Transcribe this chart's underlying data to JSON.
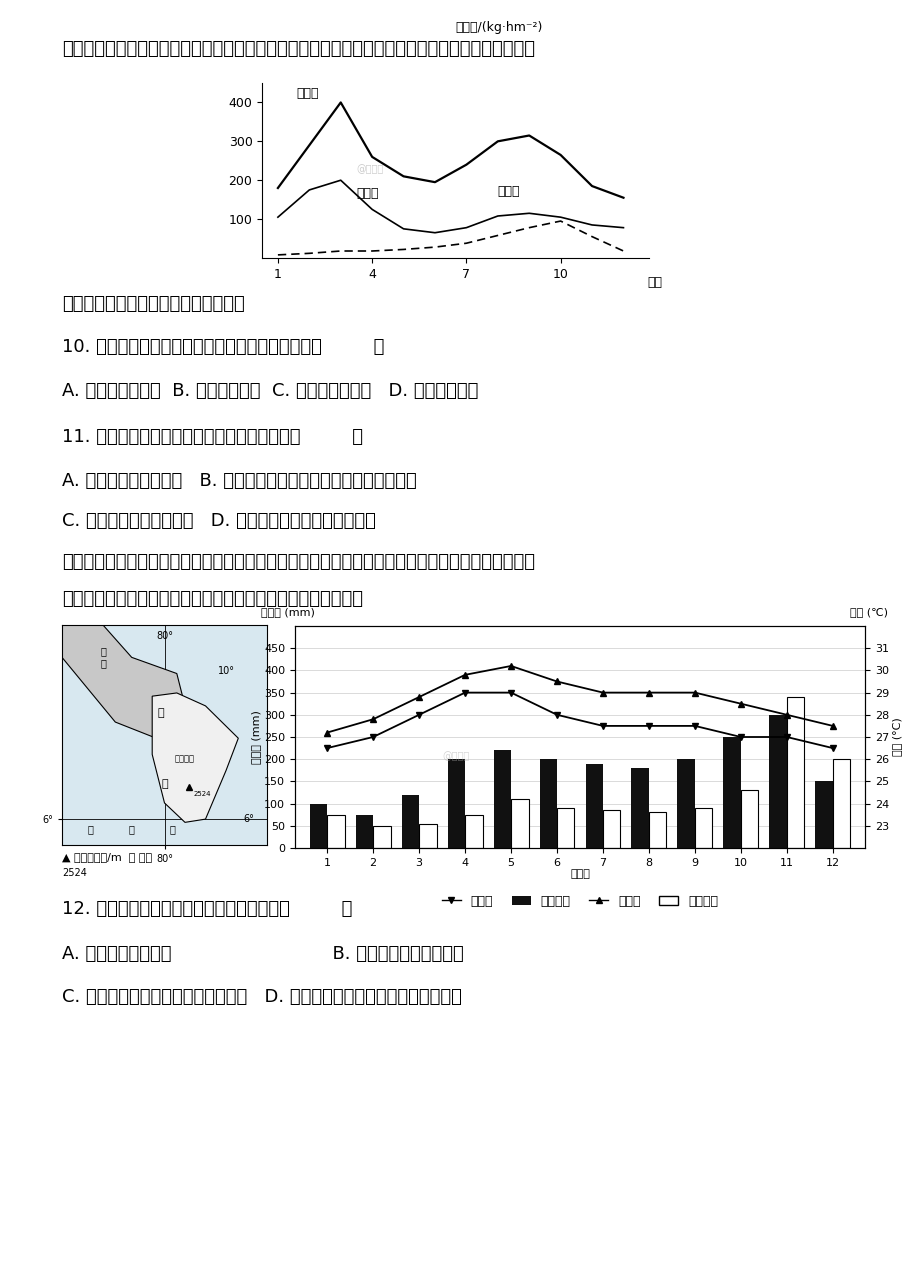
{
  "page_bg": "#ffffff",
  "para1": "森林凋落物也可称为枯落物（枯叶、枯枝、果实），下图为世界某地甲乙两种树种森林凋落物数量的",
  "para1_cont": "逐月变化示意图，据此完成下面小题。",
  "chart1_ylabel": "凋落量/(kg·hm⁻²)",
  "chart1_label_total": "总凋落",
  "chart1_label_jia": "甲树种",
  "chart1_label_yi": "乙树种",
  "chart1_xlabel": "月份",
  "total_y": [
    180,
    290,
    400,
    260,
    210,
    195,
    240,
    300,
    315,
    265,
    185,
    155
  ],
  "jia_y": [
    105,
    175,
    200,
    125,
    75,
    65,
    78,
    108,
    115,
    105,
    85,
    78
  ],
  "yi_y": [
    8,
    12,
    18,
    18,
    22,
    28,
    38,
    58,
    78,
    95,
    55,
    18
  ],
  "q10": "10. 图中乙树种分布地区在欧洲对应的气候类型为（         ）",
  "q10a": "A. 温带海洋性气候  B. 热带季风气候  C. 亚热带季风气候   D. 温带季风气候",
  "q11": "11. 造成甲树种春季凋落较多的最主要原因是（         ）",
  "q11a": "A. 阴雨天多，风力较大   B. 降水相对较少，气温回升，蒸腾作用增强",
  "q11b": "C. 日照充足，太阳辐射强   D. 春季寒潮多发，低温影响明显",
  "para2a": "斯里兰卡是一个以种植园经济为主的农业国家，是世界上最大的红茶生产基地。下图为斯里兰卡位置",
  "para2b": "示意图及甲、乙两城市气温、降水资料图。据此完成下列各题。",
  "jia_temp": [
    26.5,
    27.0,
    28.0,
    29.0,
    29.0,
    28.0,
    27.5,
    27.5,
    27.5,
    27.0,
    27.0,
    26.5
  ],
  "yi_temp": [
    27.2,
    27.8,
    28.8,
    29.8,
    30.2,
    29.5,
    29.0,
    29.0,
    29.0,
    28.5,
    28.0,
    27.5
  ],
  "jia_precip": [
    100,
    75,
    120,
    200,
    220,
    200,
    190,
    180,
    200,
    250,
    300,
    150
  ],
  "yi_precip": [
    75,
    50,
    55,
    75,
    110,
    90,
    85,
    80,
    90,
    130,
    340,
    200
  ],
  "q12": "12. 关于斯里兰卡地理特征的叙述正确的是（         ）",
  "q12a": "A. 地势中部高四周低                            B. 位于中南半岛的东南部",
  "q12b": "C. 甲城市比乙城市正午太阳高度角大   D. 位于板块交界地带，火山、地震频发"
}
